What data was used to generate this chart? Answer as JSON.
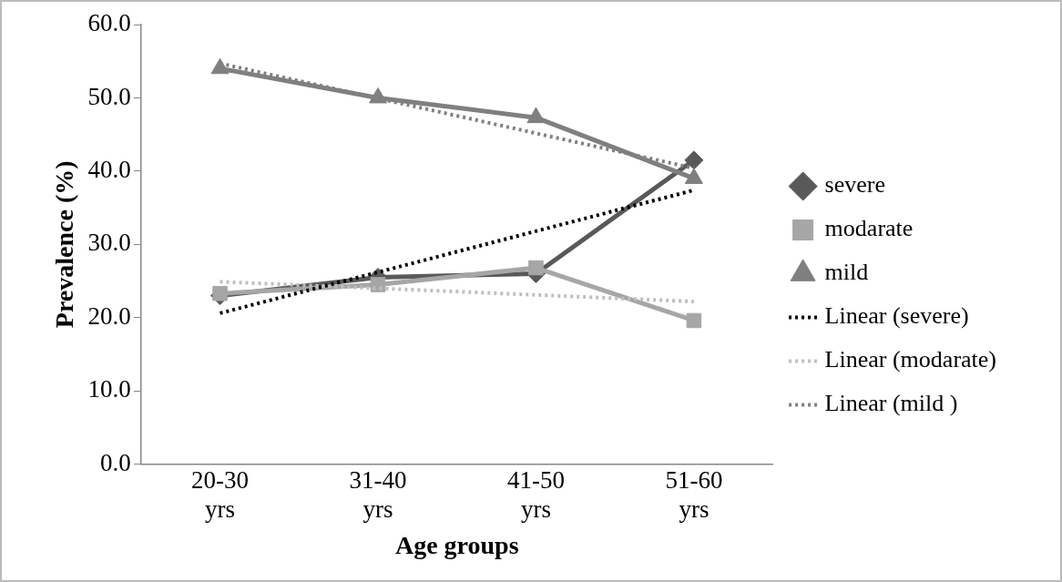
{
  "chart_data": {
    "type": "line",
    "xlabel": "Age groups",
    "ylabel": "Prevalence (%)",
    "categories": [
      "20-30 yrs",
      "31-40 yrs",
      "41-50 yrs",
      "51-60 yrs"
    ],
    "ylim": [
      0,
      60
    ],
    "yticks": [
      {
        "value": 0,
        "label": "0.0"
      },
      {
        "value": 10,
        "label": "10.0"
      },
      {
        "value": 20,
        "label": "20.0"
      },
      {
        "value": 30,
        "label": "30.0"
      },
      {
        "value": 40,
        "label": "40.0"
      },
      {
        "value": 50,
        "label": "50.0"
      },
      {
        "value": 60,
        "label": "60.0"
      }
    ],
    "grid": false,
    "legend": "right",
    "series": [
      {
        "name": "severe",
        "color": "#595959",
        "marker": "diamond",
        "line_style": "solid",
        "values": [
          23.0,
          25.5,
          26.0,
          41.5
        ]
      },
      {
        "name": "modarate",
        "color": "#a6a6a6",
        "marker": "square",
        "line_style": "solid",
        "values": [
          23.3,
          24.5,
          26.8,
          19.6
        ]
      },
      {
        "name": "mild",
        "color": "#7f7f7f",
        "marker": "triangle",
        "line_style": "solid",
        "values": [
          54.0,
          50.0,
          47.3,
          39.0
        ]
      },
      {
        "name": "Linear (severe)",
        "type": "line",
        "color": "#000000",
        "marker": "none",
        "line_style": "dotted",
        "x": [
          "20-30 yrs",
          "51-60 yrs"
        ],
        "values": [
          20.6,
          37.4
        ]
      },
      {
        "name": "Linear (modarate)",
        "type": "line",
        "color": "#bfbfbf",
        "marker": "none",
        "line_style": "dotted",
        "x": [
          "20-30 yrs",
          "51-60 yrs"
        ],
        "values": [
          24.9,
          22.2
        ]
      },
      {
        "name": "Linear (mild )",
        "type": "line",
        "color": "#808080",
        "marker": "none",
        "line_style": "dotted",
        "x": [
          "20-30 yrs",
          "51-60 yrs"
        ],
        "values": [
          54.7,
          40.4
        ]
      }
    ]
  }
}
